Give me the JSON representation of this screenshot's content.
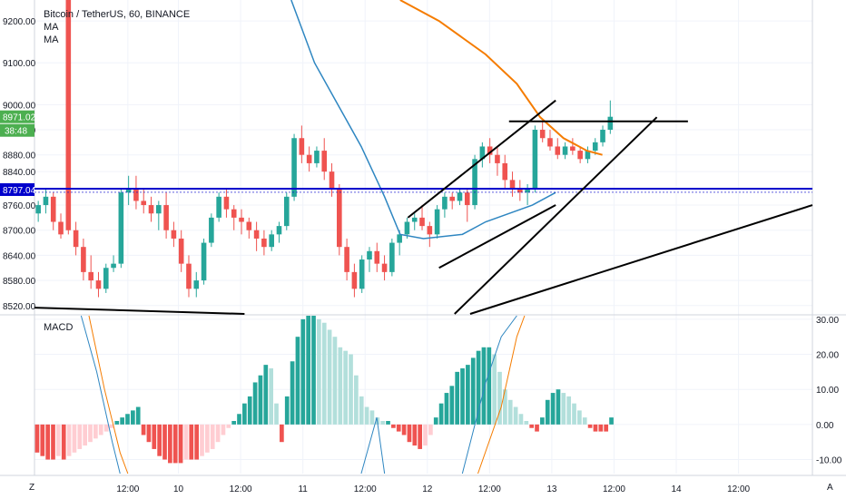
{
  "header": {
    "title": "Bitcoin / TetherUS, 60, BINANCE",
    "indicators": [
      "MA",
      "MA"
    ]
  },
  "macd": {
    "label": "MACD"
  },
  "corners": {
    "left": "Z",
    "right": "A"
  },
  "colors": {
    "up": "#26a69a",
    "down": "#ef5350",
    "up_light": "#b2dfdb",
    "down_light": "#ffcdd2",
    "ma_fast": "#2e86c1",
    "ma_slow": "#f57c00",
    "h_line": "#0000cc",
    "trend": "#000000",
    "price_badge": "#4caf50",
    "level_badge": "#0000cc"
  },
  "chart_data": [
    {
      "type": "candlestick",
      "title": "Bitcoin / TetherUS, 60, BINANCE",
      "ylim": [
        8500,
        9250
      ],
      "yticks": [
        "9200.00",
        "9100.00",
        "9000.00",
        "8940.00",
        "8880.00",
        "8840.00",
        "8760.00",
        "8700.00",
        "8640.00",
        "8580.00",
        "8520.00"
      ],
      "ytick_values": [
        9200,
        9100,
        9000,
        8940,
        8880,
        8840,
        8760,
        8700,
        8640,
        8580,
        8520
      ],
      "xticks": [
        {
          "label": "12:00",
          "pos": 0.12
        },
        {
          "label": "10",
          "pos": 0.185
        },
        {
          "label": "12:00",
          "pos": 0.265
        },
        {
          "label": "11",
          "pos": 0.345
        },
        {
          "label": "12:00",
          "pos": 0.425
        },
        {
          "label": "12",
          "pos": 0.505
        },
        {
          "label": "12:00",
          "pos": 0.585
        },
        {
          "label": "13",
          "pos": 0.665
        },
        {
          "label": "12:00",
          "pos": 0.745
        },
        {
          "label": "14",
          "pos": 0.825
        },
        {
          "label": "12:00",
          "pos": 0.905
        }
      ],
      "price_badge": {
        "text": "8971.02",
        "value": 8971.02
      },
      "countdown_badge": {
        "text": "38:48"
      },
      "level_badge": {
        "text": "8797.04",
        "value": 8797.04
      },
      "hline": 8797.04,
      "ma_fast": [
        [
          0.33,
          9250
        ],
        [
          0.36,
          9100
        ],
        [
          0.39,
          9000
        ],
        [
          0.42,
          8900
        ],
        [
          0.45,
          8780
        ],
        [
          0.47,
          8690
        ],
        [
          0.5,
          8680
        ],
        [
          0.55,
          8690
        ],
        [
          0.58,
          8720
        ],
        [
          0.61,
          8740
        ],
        [
          0.64,
          8760
        ],
        [
          0.67,
          8790
        ]
      ],
      "ma_slow": [
        [
          0.47,
          9250
        ],
        [
          0.52,
          9200
        ],
        [
          0.58,
          9120
        ],
        [
          0.62,
          9050
        ],
        [
          0.65,
          8970
        ],
        [
          0.68,
          8920
        ],
        [
          0.71,
          8890
        ],
        [
          0.73,
          8880
        ]
      ],
      "candles": [
        [
          8740,
          8770,
          8720,
          8760
        ],
        [
          8760,
          8800,
          8740,
          8780
        ],
        [
          8780,
          8790,
          8700,
          8720
        ],
        [
          8720,
          8740,
          8680,
          8690
        ],
        [
          9250,
          9260,
          8690,
          8700
        ],
        [
          8700,
          8720,
          8640,
          8660
        ],
        [
          8660,
          8680,
          8580,
          8600
        ],
        [
          8600,
          8640,
          8560,
          8580
        ],
        [
          8580,
          8600,
          8540,
          8560
        ],
        [
          8560,
          8620,
          8550,
          8610
        ],
        [
          8610,
          8640,
          8600,
          8620
        ],
        [
          8620,
          8800,
          8610,
          8790
        ],
        [
          8790,
          8830,
          8760,
          8800
        ],
        [
          8800,
          8830,
          8750,
          8770
        ],
        [
          8770,
          8800,
          8740,
          8760
        ],
        [
          8760,
          8780,
          8720,
          8740
        ],
        [
          8740,
          8770,
          8700,
          8760
        ],
        [
          8760,
          8790,
          8680,
          8700
        ],
        [
          8700,
          8720,
          8660,
          8680
        ],
        [
          8680,
          8700,
          8600,
          8620
        ],
        [
          8620,
          8640,
          8540,
          8560
        ],
        [
          8560,
          8600,
          8540,
          8580
        ],
        [
          8580,
          8680,
          8570,
          8670
        ],
        [
          8670,
          8740,
          8660,
          8730
        ],
        [
          8730,
          8790,
          8720,
          8780
        ],
        [
          8780,
          8800,
          8730,
          8750
        ],
        [
          8750,
          8760,
          8700,
          8730
        ],
        [
          8730,
          8750,
          8690,
          8720
        ],
        [
          8720,
          8730,
          8680,
          8700
        ],
        [
          8700,
          8720,
          8650,
          8680
        ],
        [
          8680,
          8700,
          8640,
          8660
        ],
        [
          8660,
          8700,
          8650,
          8690
        ],
        [
          8690,
          8720,
          8670,
          8710
        ],
        [
          8710,
          8790,
          8700,
          8780
        ],
        [
          8780,
          8930,
          8770,
          8920
        ],
        [
          8920,
          8950,
          8860,
          8880
        ],
        [
          8880,
          8900,
          8840,
          8860
        ],
        [
          8860,
          8900,
          8850,
          8890
        ],
        [
          8890,
          8920,
          8820,
          8840
        ],
        [
          8840,
          8860,
          8780,
          8800
        ],
        [
          8800,
          8810,
          8640,
          8660
        ],
        [
          8660,
          8680,
          8580,
          8600
        ],
        [
          8600,
          8620,
          8540,
          8560
        ],
        [
          8560,
          8640,
          8550,
          8630
        ],
        [
          8630,
          8660,
          8600,
          8650
        ],
        [
          8650,
          8670,
          8600,
          8620
        ],
        [
          8620,
          8640,
          8580,
          8600
        ],
        [
          8600,
          8680,
          8590,
          8670
        ],
        [
          8670,
          8700,
          8640,
          8690
        ],
        [
          8690,
          8730,
          8680,
          8720
        ],
        [
          8720,
          8740,
          8700,
          8730
        ],
        [
          8730,
          8760,
          8700,
          8710
        ],
        [
          8710,
          8720,
          8660,
          8690
        ],
        [
          8690,
          8760,
          8680,
          8750
        ],
        [
          8750,
          8790,
          8730,
          8780
        ],
        [
          8780,
          8790,
          8750,
          8770
        ],
        [
          8770,
          8800,
          8760,
          8790
        ],
        [
          8790,
          8800,
          8720,
          8760
        ],
        [
          8760,
          8880,
          8750,
          8870
        ],
        [
          8870,
          8910,
          8850,
          8900
        ],
        [
          8900,
          8920,
          8860,
          8880
        ],
        [
          8880,
          8900,
          8830,
          8860
        ],
        [
          8860,
          8880,
          8800,
          8820
        ],
        [
          8820,
          8840,
          8780,
          8800
        ],
        [
          8800,
          8820,
          8770,
          8790
        ],
        [
          8790,
          8810,
          8760,
          8800
        ],
        [
          8800,
          8950,
          8790,
          8940
        ],
        [
          8940,
          8960,
          8910,
          8920
        ],
        [
          8920,
          8940,
          8890,
          8900
        ],
        [
          8900,
          8920,
          8870,
          8880
        ],
        [
          8880,
          8910,
          8870,
          8900
        ],
        [
          8900,
          8920,
          8880,
          8890
        ],
        [
          8890,
          8900,
          8860,
          8870
        ],
        [
          8870,
          8900,
          8860,
          8890
        ],
        [
          8890,
          8920,
          8880,
          8910
        ],
        [
          8910,
          8950,
          8900,
          8940
        ],
        [
          8940,
          9010,
          8930,
          8971.02
        ]
      ]
    },
    {
      "type": "bar",
      "title": "MACD",
      "ylim": [
        -14,
        31
      ],
      "yticks": [
        "30.00",
        "20.00",
        "10.00",
        "0.00",
        "-10.00"
      ],
      "ytick_values": [
        30,
        20,
        10,
        0,
        -10
      ],
      "histogram": [
        -8,
        -9,
        -10,
        -10,
        -9,
        -10,
        -9,
        -8,
        -7,
        -6,
        -5,
        -4,
        -3,
        -2,
        -1,
        1,
        2,
        3,
        4,
        5,
        -3,
        -5,
        -7,
        -9,
        -10,
        -11,
        -11,
        -11,
        -10,
        -10,
        -10,
        -9,
        -8,
        -7,
        -5,
        -3,
        -1,
        1,
        3,
        6,
        8,
        12,
        14,
        17,
        16,
        6,
        -5,
        8,
        18,
        25,
        30,
        31,
        31,
        30,
        29,
        27,
        25,
        22,
        21,
        20,
        14,
        8,
        5,
        4,
        2,
        1,
        1,
        -1,
        -2,
        -3,
        -5,
        -6,
        -7,
        -6,
        -3,
        2,
        6,
        9,
        11,
        15,
        16,
        17,
        19,
        21,
        22,
        22,
        20,
        15,
        10,
        7,
        5,
        3,
        1,
        -1,
        -2,
        2,
        7,
        9,
        10,
        9,
        8,
        6,
        4,
        2,
        -1,
        -2,
        -2,
        -2,
        2
      ],
      "macd_line": [
        [
          0.06,
          31
        ],
        [
          0.08,
          15
        ],
        [
          0.1,
          -5
        ],
        [
          0.11,
          -14
        ]
      ],
      "signal_line": [
        [
          0.07,
          31
        ],
        [
          0.09,
          10
        ],
        [
          0.11,
          -8
        ],
        [
          0.12,
          -14
        ]
      ],
      "macd_line_b": [
        [
          0.42,
          -14
        ],
        [
          0.44,
          2
        ],
        [
          0.45,
          -14
        ]
      ],
      "macd_line_c": [
        [
          0.55,
          -14
        ],
        [
          0.58,
          12
        ],
        [
          0.6,
          25
        ],
        [
          0.62,
          31
        ]
      ],
      "signal_line_c": [
        [
          0.57,
          -14
        ],
        [
          0.6,
          5
        ],
        [
          0.62,
          25
        ],
        [
          0.63,
          31
        ]
      ]
    }
  ]
}
